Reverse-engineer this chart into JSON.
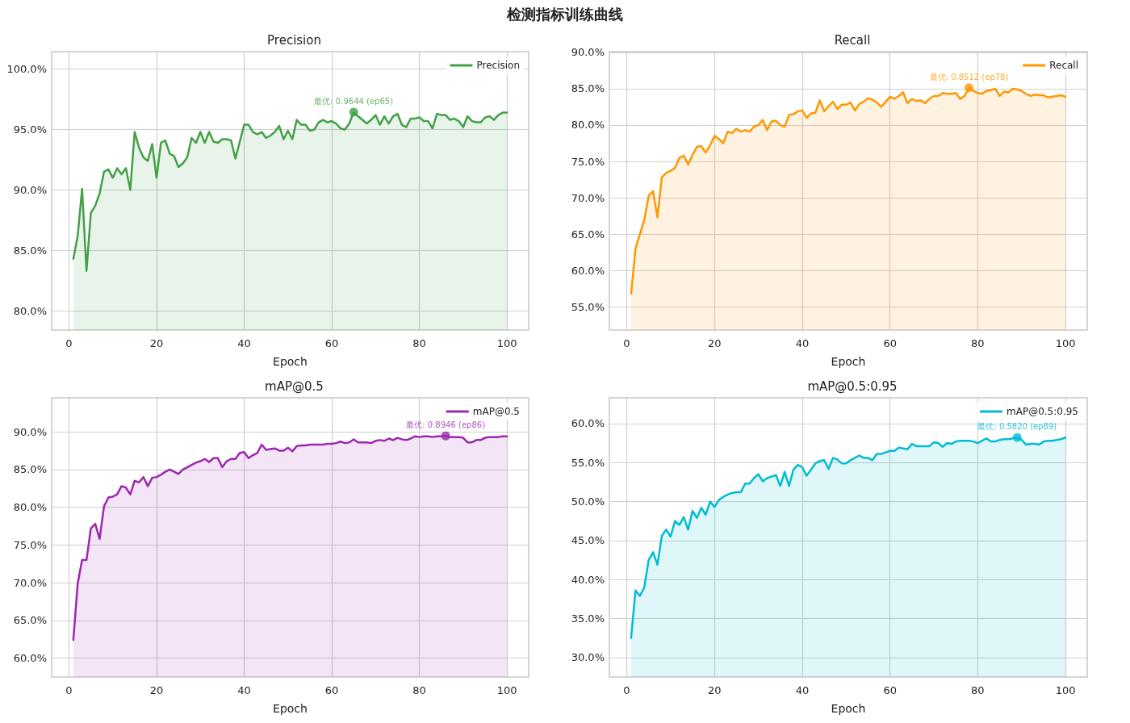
{
  "chart_data": [
    {
      "type": "other",
      "title": "检测指标训练曲线"
    },
    {
      "type": "area",
      "title": "Precision",
      "xlabel": "Epoch",
      "legend": "top right",
      "grid": true,
      "line_style": "solid",
      "x": [
        1,
        2,
        3,
        4,
        5,
        6,
        7,
        8,
        9,
        10,
        11,
        12,
        13,
        14,
        15,
        16,
        17,
        18,
        19,
        20,
        21,
        22,
        23,
        24,
        25,
        26,
        27,
        28,
        29,
        30,
        31,
        32,
        33,
        34,
        35,
        36,
        37,
        38,
        39,
        40,
        41,
        42,
        43,
        44,
        45,
        46,
        47,
        48,
        49,
        50,
        51,
        52,
        53,
        54,
        55,
        56,
        57,
        58,
        59,
        60,
        61,
        62,
        63,
        64,
        65,
        66,
        67,
        68,
        69,
        70,
        71,
        72,
        73,
        74,
        75,
        76,
        77,
        78,
        79,
        80,
        81,
        82,
        83,
        84,
        85,
        86,
        87,
        88,
        89,
        90,
        91,
        92,
        93,
        94,
        95,
        96,
        97,
        98,
        99,
        100
      ],
      "xlim": [
        -3.95,
        104.95
      ],
      "xticks": [
        0,
        20,
        40,
        60,
        80,
        100
      ],
      "ylim": [
        78.4,
        101.45
      ],
      "yticks": [
        {
          "value": 80,
          "label": "80.0%"
        },
        {
          "value": 85,
          "label": "85.0%"
        },
        {
          "value": 90,
          "label": "90.0%"
        },
        {
          "value": 95,
          "label": "95.0%"
        },
        {
          "value": 100,
          "label": "100.0%"
        }
      ],
      "series": [
        {
          "name": "Precision",
          "color": "#43a047",
          "values": [
            84.3,
            86.2,
            90.1,
            83.3,
            88.1,
            88.7,
            89.7,
            91.5,
            91.7,
            91.0,
            91.8,
            91.3,
            91.8,
            90.0,
            94.8,
            93.5,
            92.7,
            92.4,
            93.8,
            91.0,
            93.9,
            94.1,
            93.0,
            92.8,
            91.9,
            92.2,
            92.7,
            94.3,
            93.9,
            94.8,
            93.9,
            94.8,
            94.0,
            93.9,
            94.2,
            94.2,
            94.1,
            92.6,
            94.0,
            95.4,
            95.4,
            94.8,
            94.6,
            94.8,
            94.3,
            94.5,
            94.8,
            95.3,
            94.2,
            94.9,
            94.2,
            95.8,
            95.4,
            95.4,
            94.9,
            95.0,
            95.6,
            95.8,
            95.6,
            95.7,
            95.5,
            95.1,
            95.0,
            95.5,
            96.44,
            96.1,
            95.8,
            95.5,
            95.8,
            96.2,
            95.4,
            96.1,
            95.5,
            96.1,
            96.3,
            95.4,
            95.2,
            95.9,
            95.9,
            96.0,
            95.7,
            95.7,
            95.1,
            96.3,
            96.2,
            96.2,
            95.8,
            95.9,
            95.7,
            95.2,
            96.1,
            95.7,
            95.6,
            95.6,
            96.0,
            96.1,
            95.8,
            96.2,
            96.4,
            96.4
          ]
        }
      ],
      "annotations": [
        {
          "text": "最优: 0.9644 (ep65)",
          "x": 65,
          "y": 96.44
        }
      ]
    },
    {
      "type": "area",
      "title": "Recall",
      "xlabel": "Epoch",
      "legend": "top right",
      "grid": true,
      "line_style": "solid",
      "x": [
        1,
        2,
        3,
        4,
        5,
        6,
        7,
        8,
        9,
        10,
        11,
        12,
        13,
        14,
        15,
        16,
        17,
        18,
        19,
        20,
        21,
        22,
        23,
        24,
        25,
        26,
        27,
        28,
        29,
        30,
        31,
        32,
        33,
        34,
        35,
        36,
        37,
        38,
        39,
        40,
        41,
        42,
        43,
        44,
        45,
        46,
        47,
        48,
        49,
        50,
        51,
        52,
        53,
        54,
        55,
        56,
        57,
        58,
        59,
        60,
        61,
        62,
        63,
        64,
        65,
        66,
        67,
        68,
        69,
        70,
        71,
        72,
        73,
        74,
        75,
        76,
        77,
        78,
        79,
        80,
        81,
        82,
        83,
        84,
        85,
        86,
        87,
        88,
        89,
        90,
        91,
        92,
        93,
        94,
        95,
        96,
        97,
        98,
        99,
        100
      ],
      "xlim": [
        -3.95,
        104.95
      ],
      "xticks": [
        0,
        20,
        40,
        60,
        80,
        100
      ],
      "ylim": [
        51.8,
        90.1
      ],
      "yticks": [
        {
          "value": 55,
          "label": "55.0%"
        },
        {
          "value": 60,
          "label": "60.0%"
        },
        {
          "value": 65,
          "label": "65.0%"
        },
        {
          "value": 70,
          "label": "70.0%"
        },
        {
          "value": 75,
          "label": "75.0%"
        },
        {
          "value": 80,
          "label": "80.0%"
        },
        {
          "value": 85,
          "label": "85.0%"
        },
        {
          "value": 90,
          "label": "90.0%"
        }
      ],
      "series": [
        {
          "name": "Recall",
          "color": "#ff9800",
          "values": [
            56.8,
            63.0,
            65.0,
            66.9,
            70.3,
            70.9,
            67.3,
            72.8,
            73.4,
            73.7,
            74.1,
            75.5,
            75.8,
            74.6,
            75.9,
            77.0,
            77.1,
            76.2,
            77.2,
            78.5,
            78.1,
            77.5,
            79.1,
            78.9,
            79.5,
            79.1,
            79.3,
            79.1,
            79.8,
            80.0,
            80.7,
            79.3,
            80.5,
            80.6,
            80.0,
            79.8,
            81.4,
            81.5,
            81.9,
            82.0,
            81.0,
            81.6,
            81.7,
            83.4,
            81.9,
            82.6,
            83.2,
            82.2,
            82.8,
            82.8,
            83.1,
            82.0,
            82.9,
            83.2,
            83.7,
            83.5,
            83.1,
            82.5,
            83.2,
            83.9,
            83.6,
            84.0,
            84.5,
            83.0,
            83.6,
            83.3,
            83.4,
            83.0,
            83.6,
            84.0,
            84.0,
            84.4,
            84.3,
            84.3,
            84.4,
            83.6,
            84.0,
            85.12,
            84.7,
            84.4,
            84.3,
            84.7,
            84.8,
            85.0,
            84.0,
            84.6,
            84.5,
            85.0,
            84.9,
            84.7,
            84.3,
            84.0,
            84.2,
            84.1,
            84.1,
            83.8,
            83.9,
            84.0,
            84.1,
            83.9
          ]
        }
      ],
      "annotations": [
        {
          "text": "最优: 0.8512 (ep78)",
          "x": 78,
          "y": 85.12
        }
      ]
    },
    {
      "type": "area",
      "title": "mAP@0.5",
      "xlabel": "Epoch",
      "legend": "top right",
      "grid": true,
      "line_style": "solid",
      "x": [
        1,
        2,
        3,
        4,
        5,
        6,
        7,
        8,
        9,
        10,
        11,
        12,
        13,
        14,
        15,
        16,
        17,
        18,
        19,
        20,
        21,
        22,
        23,
        24,
        25,
        26,
        27,
        28,
        29,
        30,
        31,
        32,
        33,
        34,
        35,
        36,
        37,
        38,
        39,
        40,
        41,
        42,
        43,
        44,
        45,
        46,
        47,
        48,
        49,
        50,
        51,
        52,
        53,
        54,
        55,
        56,
        57,
        58,
        59,
        60,
        61,
        62,
        63,
        64,
        65,
        66,
        67,
        68,
        69,
        70,
        71,
        72,
        73,
        74,
        75,
        76,
        77,
        78,
        79,
        80,
        81,
        82,
        83,
        84,
        85,
        86,
        87,
        88,
        89,
        90,
        91,
        92,
        93,
        94,
        95,
        96,
        97,
        98,
        99,
        100
      ],
      "xlim": [
        -3.95,
        104.95
      ],
      "xticks": [
        0,
        20,
        40,
        60,
        80,
        100
      ],
      "ylim": [
        57.5,
        94.5
      ],
      "yticks": [
        {
          "value": 60,
          "label": "60.0%"
        },
        {
          "value": 65,
          "label": "65.0%"
        },
        {
          "value": 70,
          "label": "70.0%"
        },
        {
          "value": 75,
          "label": "75.0%"
        },
        {
          "value": 80,
          "label": "80.0%"
        },
        {
          "value": 85,
          "label": "85.0%"
        },
        {
          "value": 90,
          "label": "90.0%"
        }
      ],
      "series": [
        {
          "name": "mAP@0.5",
          "color": "#9c27b0",
          "values": [
            62.4,
            69.9,
            73.0,
            73.0,
            77.2,
            77.8,
            75.8,
            80.1,
            81.3,
            81.4,
            81.7,
            82.8,
            82.6,
            81.7,
            83.5,
            83.3,
            84.0,
            82.8,
            83.9,
            84.0,
            84.3,
            84.7,
            85.0,
            84.7,
            84.4,
            85.0,
            85.3,
            85.6,
            85.9,
            86.1,
            86.4,
            86.0,
            86.5,
            86.5,
            85.3,
            86.1,
            86.4,
            86.4,
            87.2,
            87.3,
            86.5,
            86.9,
            87.2,
            88.3,
            87.6,
            87.7,
            87.8,
            87.5,
            87.5,
            87.9,
            87.4,
            88.1,
            88.2,
            88.2,
            88.3,
            88.3,
            88.3,
            88.3,
            88.4,
            88.4,
            88.5,
            88.7,
            88.5,
            88.6,
            89.0,
            88.6,
            88.6,
            88.6,
            88.5,
            88.8,
            88.9,
            88.8,
            89.1,
            88.9,
            89.2,
            89.0,
            88.9,
            89.1,
            89.4,
            89.3,
            89.4,
            89.4,
            89.3,
            89.4,
            89.4,
            89.46,
            89.3,
            89.3,
            89.3,
            89.2,
            88.6,
            88.6,
            88.9,
            88.9,
            89.2,
            89.3,
            89.3,
            89.3,
            89.4,
            89.4
          ]
        }
      ],
      "annotations": [
        {
          "text": "最优: 0.8946 (ep86)",
          "x": 86,
          "y": 89.46
        }
      ]
    },
    {
      "type": "area",
      "title": "mAP@0.5:0.95",
      "xlabel": "Epoch",
      "legend": "top right",
      "grid": true,
      "line_style": "solid",
      "x": [
        1,
        2,
        3,
        4,
        5,
        6,
        7,
        8,
        9,
        10,
        11,
        12,
        13,
        14,
        15,
        16,
        17,
        18,
        19,
        20,
        21,
        22,
        23,
        24,
        25,
        26,
        27,
        28,
        29,
        30,
        31,
        32,
        33,
        34,
        35,
        36,
        37,
        38,
        39,
        40,
        41,
        42,
        43,
        44,
        45,
        46,
        47,
        48,
        49,
        50,
        51,
        52,
        53,
        54,
        55,
        56,
        57,
        58,
        59,
        60,
        61,
        62,
        63,
        64,
        65,
        66,
        67,
        68,
        69,
        70,
        71,
        72,
        73,
        74,
        75,
        76,
        77,
        78,
        79,
        80,
        81,
        82,
        83,
        84,
        85,
        86,
        87,
        88,
        89,
        90,
        91,
        92,
        93,
        94,
        95,
        96,
        97,
        98,
        99,
        100
      ],
      "xlim": [
        -3.95,
        104.95
      ],
      "xticks": [
        0,
        20,
        40,
        60,
        80,
        100
      ],
      "ylim": [
        27.5,
        63.3
      ],
      "yticks": [
        {
          "value": 30,
          "label": "30.0%"
        },
        {
          "value": 35,
          "label": "35.0%"
        },
        {
          "value": 40,
          "label": "40.0%"
        },
        {
          "value": 45,
          "label": "45.0%"
        },
        {
          "value": 50,
          "label": "50.0%"
        },
        {
          "value": 55,
          "label": "55.0%"
        },
        {
          "value": 60,
          "label": "60.0%"
        }
      ],
      "series": [
        {
          "name": "mAP@0.5:0.95",
          "color": "#00bcd4",
          "values": [
            32.5,
            38.6,
            37.9,
            39.0,
            42.5,
            43.5,
            41.9,
            45.6,
            46.4,
            45.5,
            47.5,
            47.0,
            48.0,
            46.4,
            48.8,
            47.9,
            49.2,
            48.3,
            50.0,
            49.3,
            50.2,
            50.6,
            50.9,
            51.1,
            51.2,
            51.2,
            52.3,
            52.3,
            53.0,
            53.5,
            52.6,
            53.0,
            53.2,
            53.4,
            52.0,
            53.8,
            52.0,
            54.1,
            54.7,
            54.4,
            53.3,
            54.1,
            54.9,
            55.2,
            55.3,
            54.2,
            55.6,
            55.4,
            54.9,
            54.9,
            55.3,
            55.6,
            55.9,
            55.6,
            55.6,
            55.3,
            56.1,
            56.1,
            56.3,
            56.5,
            56.5,
            56.9,
            56.8,
            56.7,
            57.4,
            57.1,
            57.1,
            57.1,
            57.1,
            57.6,
            57.5,
            57.0,
            57.5,
            57.4,
            57.7,
            57.8,
            57.8,
            57.8,
            57.7,
            57.5,
            57.8,
            58.1,
            57.7,
            57.7,
            57.9,
            58.0,
            58.0,
            58.1,
            58.2,
            57.9,
            57.3,
            57.4,
            57.4,
            57.3,
            57.7,
            57.8,
            57.8,
            57.9,
            58.0,
            58.2
          ]
        }
      ],
      "annotations": [
        {
          "text": "最优: 0.5820 (ep89)",
          "x": 89,
          "y": 58.2
        }
      ]
    }
  ]
}
